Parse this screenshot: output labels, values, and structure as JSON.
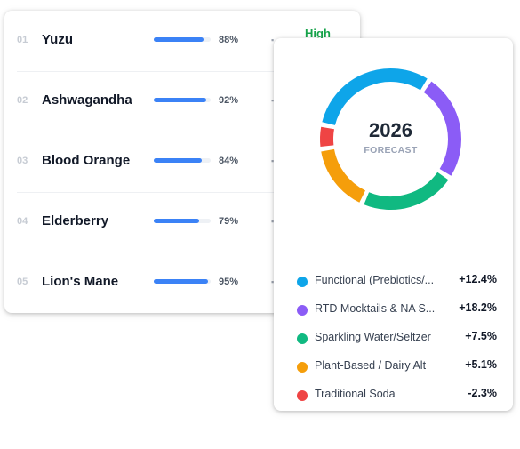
{
  "ingredients": [
    {
      "rank": "01",
      "name": "Yuzu",
      "value": 88,
      "pct": "88%"
    },
    {
      "rank": "02",
      "name": "Ashwagandha",
      "value": 92,
      "pct": "92%"
    },
    {
      "rank": "03",
      "name": "Blood Orange",
      "value": 84,
      "pct": "84%"
    },
    {
      "rank": "04",
      "name": "Elderberry",
      "value": 79,
      "pct": "79%"
    },
    {
      "rank": "05",
      "name": "Lion's Mane",
      "value": 95,
      "pct": "95%"
    }
  ],
  "first_row_tag": "High",
  "bar_color": "#3b82f6",
  "forecast": {
    "year": "2026",
    "label": "FORECAST",
    "segments": [
      {
        "name": "Functional (Prebiotics/Probiotics)",
        "display_name": "Functional (Prebiotics/...",
        "value": "+12.4%",
        "color": "#0ea5e9",
        "share": 0.309
      },
      {
        "name": "RTD Mocktails & NA Spirits",
        "display_name": "RTD Mocktails & NA S...",
        "value": "+18.2%",
        "color": "#8b5cf6",
        "share": 0.25
      },
      {
        "name": "Sparkling Water/Seltzer",
        "display_name": "Sparkling Water/Seltzer",
        "value": "+7.5%",
        "color": "#10b981",
        "share": 0.225
      },
      {
        "name": "Plant-Based / Dairy Alt",
        "display_name": "Plant-Based / Dairy Alt",
        "value": "+5.1%",
        "color": "#f59e0b",
        "share": 0.16
      },
      {
        "name": "Traditional Soda",
        "display_name": "Traditional Soda",
        "value": "-2.3%",
        "color": "#ef4444",
        "share": 0.056
      }
    ]
  }
}
